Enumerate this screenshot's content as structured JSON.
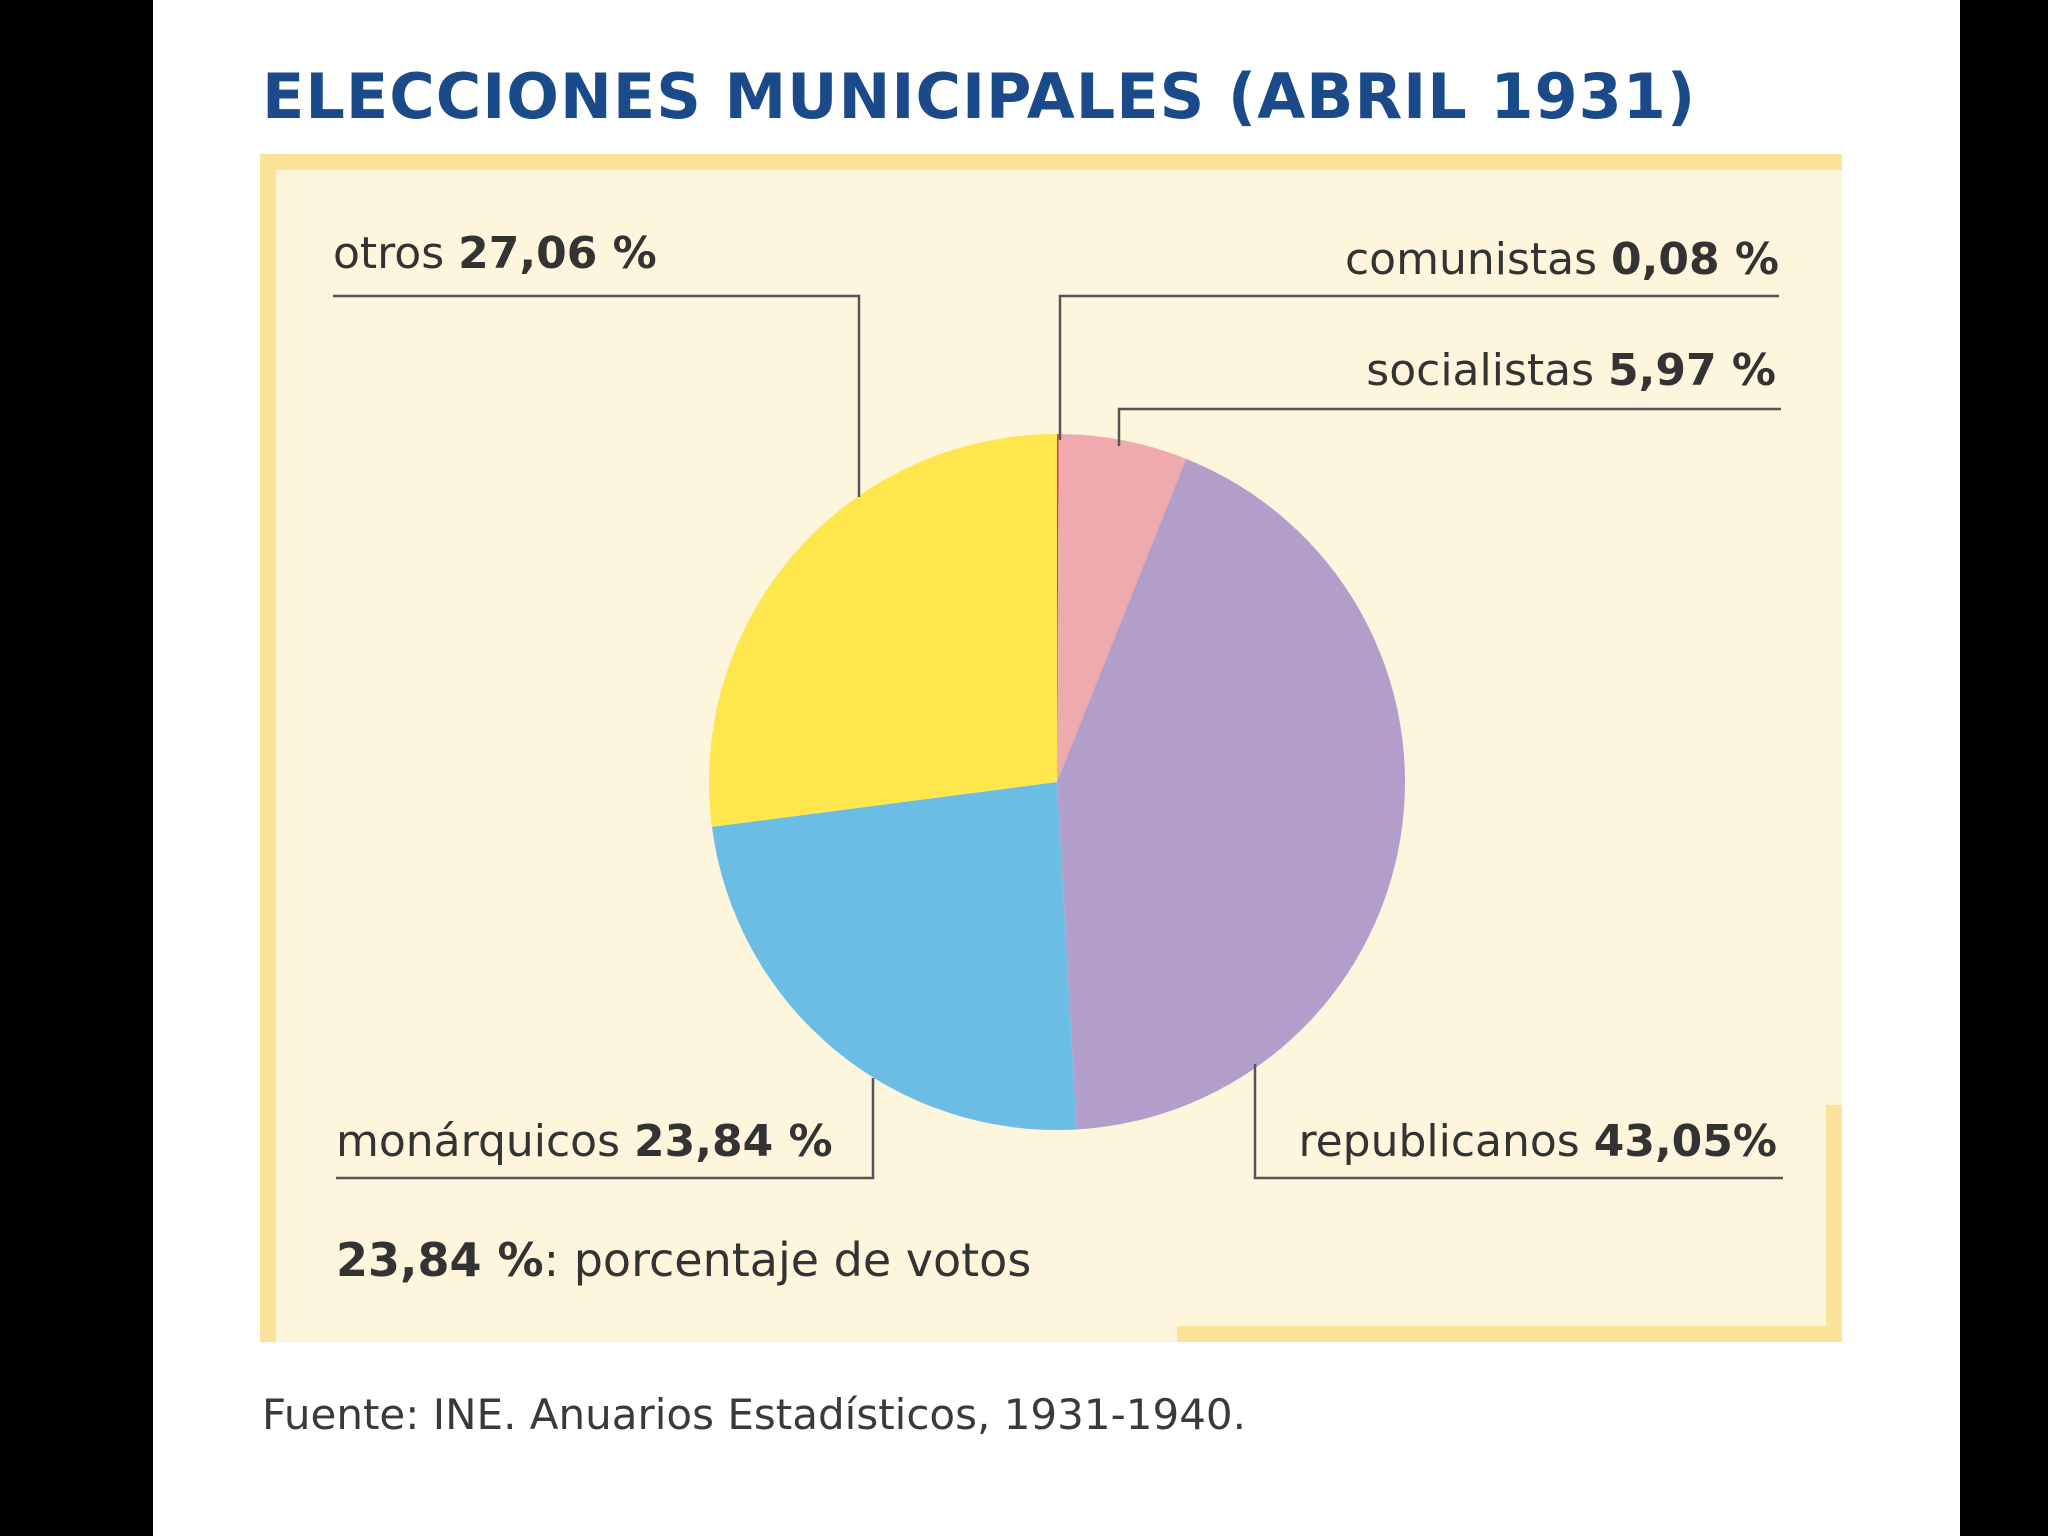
{
  "chart_data": {
    "type": "pie",
    "title": "ELECCIONES MUNICIPALES (ABRIL 1931)",
    "slices": [
      {
        "label": "comunistas",
        "value": 0.08,
        "value_label": "0,08 %",
        "color": "#e8354a"
      },
      {
        "label": "socialistas",
        "value": 5.97,
        "value_label": "5,97 %",
        "color": "#eeaaad"
      },
      {
        "label": "republicanos",
        "value": 43.05,
        "value_label": "43,05%",
        "color": "#b39ecb"
      },
      {
        "label": "monárquicos",
        "value": 23.84,
        "value_label": "23,84 %",
        "color": "#6bbde4"
      },
      {
        "label": "otros",
        "value": 27.06,
        "value_label": "27,06 %",
        "color": "#fde74c"
      }
    ],
    "legend_note": {
      "example": "23,84 %",
      "text": ": porcentaje de votos"
    },
    "source": "Fuente: INE. Anuarios Estadísticos, 1931-1940."
  },
  "colors": {
    "title": "#1a4a8a",
    "panel_background": "#fdf5dc",
    "panel_border": "#fbe39a",
    "leader_line": "#555555"
  }
}
